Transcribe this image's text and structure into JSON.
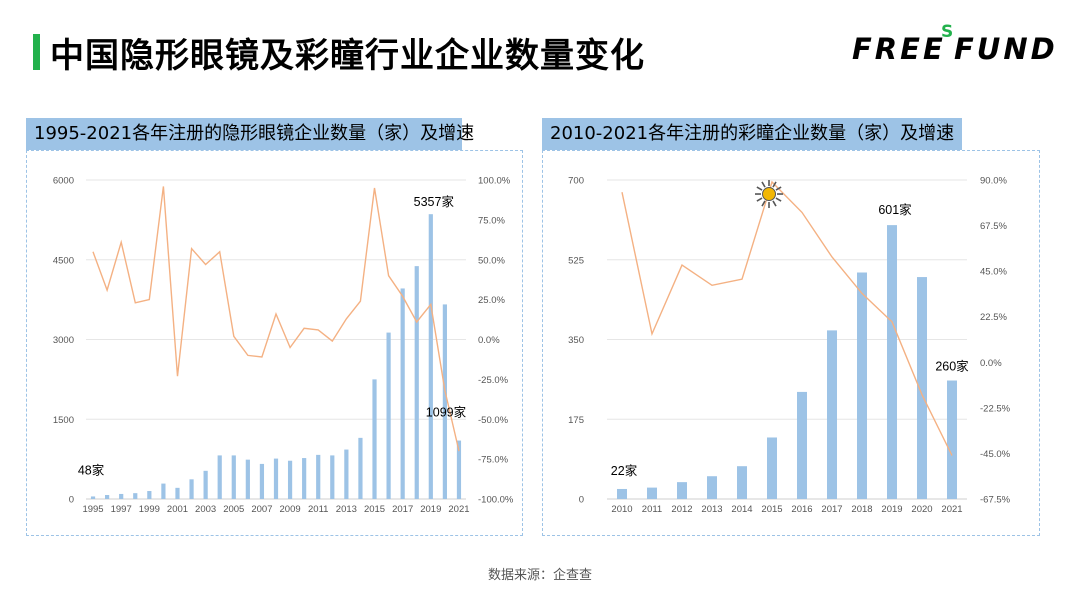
{
  "page": {
    "title": "中国隐形眼镜及彩瞳行业企业数量变化",
    "logo_main": "FREE",
    "logo_sup": "S",
    "logo_fund": "FUND",
    "source": "数据来源：企查查",
    "accent_color": "#22b14c",
    "bar_color": "#9dc3e6",
    "line_color": "#f4b183"
  },
  "chart_data": [
    {
      "type": "bar",
      "title": "1995-2021各年注册的隐形眼镜企业数量（家）及增速",
      "categories": [
        "1995",
        "1996",
        "1997",
        "1998",
        "1999",
        "2000",
        "2001",
        "2002",
        "2003",
        "2004",
        "2005",
        "2006",
        "2007",
        "2008",
        "2009",
        "2010",
        "2011",
        "2012",
        "2013",
        "2014",
        "2015",
        "2016",
        "2017",
        "2018",
        "2019",
        "2020",
        "2021"
      ],
      "x_tick_labels": [
        "1995",
        "1997",
        "1999",
        "2001",
        "2003",
        "2005",
        "2007",
        "2009",
        "2011",
        "2013",
        "2015",
        "2017",
        "2019",
        "2021"
      ],
      "y_left": {
        "min": 0,
        "max": 6000,
        "ticks": [
          "0",
          "1500",
          "3000",
          "4500",
          "6000"
        ]
      },
      "y_right": {
        "min": -100,
        "max": 100,
        "ticks": [
          "-100.0%",
          "-75.0%",
          "-50.0%",
          "-25.0%",
          "0.0%",
          "25.0%",
          "50.0%",
          "75.0%",
          "100.0%"
        ]
      },
      "series": [
        {
          "type": "bar",
          "values": [
            48,
            75,
            95,
            110,
            150,
            290,
            210,
            370,
            530,
            820,
            820,
            740,
            660,
            760,
            720,
            770,
            830,
            820,
            930,
            1150,
            2250,
            3130,
            3960,
            4380,
            5357,
            3660,
            1099
          ]
        },
        {
          "type": "line",
          "axis": "right",
          "values": [
            55,
            31,
            61,
            23,
            25,
            96,
            -23,
            57,
            47,
            55,
            2,
            -10,
            -11,
            16,
            -5,
            7,
            6,
            -1,
            13,
            24,
            95,
            40,
            27,
            11,
            22,
            -32,
            -70
          ]
        }
      ],
      "annotations": [
        {
          "category": "1995",
          "text": "48家"
        },
        {
          "category": "2019",
          "text": "5357家"
        },
        {
          "category": "2021",
          "text": "1099家"
        }
      ]
    },
    {
      "type": "bar",
      "title": "2010-2021各年注册的彩瞳企业数量（家）及增速",
      "categories": [
        "2010",
        "2011",
        "2012",
        "2013",
        "2014",
        "2015",
        "2016",
        "2017",
        "2018",
        "2019",
        "2020",
        "2021"
      ],
      "x_tick_labels": [
        "2010",
        "2011",
        "2012",
        "2013",
        "2014",
        "2015",
        "2016",
        "2017",
        "2018",
        "2019",
        "2020",
        "2021"
      ],
      "y_left": {
        "min": 0,
        "max": 700,
        "ticks": [
          "0",
          "175",
          "350",
          "525",
          "700"
        ]
      },
      "y_right": {
        "min": -67.5,
        "max": 90,
        "ticks": [
          "-67.5%",
          "-45.0%",
          "-22.5%",
          "0.0%",
          "22.5%",
          "45.0%",
          "67.5%",
          "90.0%"
        ]
      },
      "series": [
        {
          "type": "bar",
          "values": [
            22,
            25,
            37,
            50,
            72,
            135,
            235,
            370,
            497,
            601,
            487,
            260
          ]
        },
        {
          "type": "line",
          "axis": "right",
          "values": [
            84,
            14,
            48,
            38,
            41,
            89,
            74,
            52,
            34,
            20,
            -16,
            -46
          ]
        }
      ],
      "annotations": [
        {
          "category": "2010",
          "text": "22家"
        },
        {
          "category": "2019",
          "text": "601家"
        },
        {
          "category": "2021",
          "text": "260家"
        }
      ],
      "marker_icon": "sun-icon"
    }
  ]
}
